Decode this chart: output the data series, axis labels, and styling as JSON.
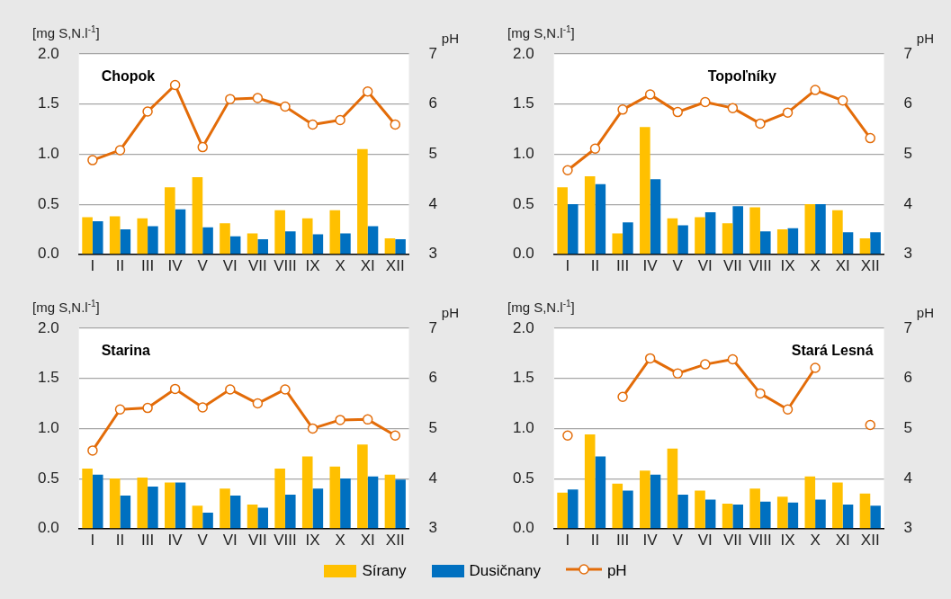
{
  "chart_data": [
    {
      "type": "bar",
      "title": "Chopok",
      "ylabel": "[mg S,N.l$^{-1}$]",
      "y2label": "pH",
      "categories": [
        "I",
        "II",
        "III",
        "IV",
        "V",
        "VI",
        "VII",
        "VIII",
        "IX",
        "X",
        "XI",
        "XII"
      ],
      "ylim": [
        0,
        2
      ],
      "yticks": [
        {
          "value": 0,
          "label": "0.0"
        },
        {
          "value": 0.5,
          "label": "0.5"
        },
        {
          "value": 1,
          "label": "1.0"
        },
        {
          "value": 1.5,
          "label": "1.5"
        },
        {
          "value": 2,
          "label": "2.0"
        }
      ],
      "y2lim": [
        3,
        7
      ],
      "y2ticks": [
        3,
        4,
        5,
        6,
        7
      ],
      "grid": "y",
      "legend": "bottom",
      "series": [
        {
          "name": "Sírany",
          "color": "#ffc000",
          "values": [
            0.37,
            0.38,
            0.36,
            0.67,
            0.77,
            0.31,
            0.21,
            0.44,
            0.36,
            0.44,
            1.05,
            0.16
          ]
        },
        {
          "name": "Dusičnany",
          "color": "#0070c0",
          "values": [
            0.33,
            0.25,
            0.28,
            0.45,
            0.27,
            0.18,
            0.15,
            0.23,
            0.2,
            0.21,
            0.28,
            0.15
          ]
        },
        {
          "name": "pH",
          "type": "line",
          "axis": "y2",
          "marker": "circle",
          "color": "#e36c09",
          "values": [
            4.88,
            5.08,
            5.85,
            6.38,
            5.14,
            6.1,
            6.12,
            5.95,
            5.59,
            5.68,
            6.25,
            5.59
          ]
        }
      ]
    },
    {
      "type": "bar",
      "title": "Topoľníky",
      "ylabel": "[mg S,N.l$^{-1}$]",
      "y2label": "pH",
      "categories": [
        "I",
        "II",
        "III",
        "IV",
        "V",
        "VI",
        "VII",
        "VIII",
        "IX",
        "X",
        "XI",
        "XII"
      ],
      "ylim": [
        0,
        2
      ],
      "yticks": [
        {
          "value": 0,
          "label": "0.0"
        },
        {
          "value": 0.5,
          "label": "0.5"
        },
        {
          "value": 1,
          "label": "1.0"
        },
        {
          "value": 1.5,
          "label": "1.5"
        },
        {
          "value": 2,
          "label": "2.0"
        }
      ],
      "y2lim": [
        3,
        7
      ],
      "y2ticks": [
        3,
        4,
        5,
        6,
        7
      ],
      "grid": "y",
      "series": [
        {
          "color": "#ffc000",
          "values": [
            0.67,
            0.78,
            0.21,
            1.27,
            0.36,
            0.37,
            0.31,
            0.47,
            0.25,
            0.5,
            0.44,
            0.16
          ]
        },
        {
          "color": "#0070c0",
          "values": [
            0.5,
            0.7,
            0.32,
            0.75,
            0.29,
            0.42,
            0.48,
            0.23,
            0.26,
            0.5,
            0.22,
            0.22
          ]
        },
        {
          "type": "line",
          "axis": "y2",
          "marker": "circle",
          "color": "#e36c09",
          "values": [
            4.68,
            5.11,
            5.89,
            6.19,
            5.84,
            6.04,
            5.92,
            5.61,
            5.83,
            6.28,
            6.07,
            5.32
          ]
        }
      ]
    },
    {
      "type": "bar",
      "title": "Starina",
      "ylabel": "[mg S,N.l$^{-1}$]",
      "y2label": "pH",
      "categories": [
        "I",
        "II",
        "III",
        "IV",
        "V",
        "VI",
        "VII",
        "VIII",
        "IX",
        "X",
        "XI",
        "XII"
      ],
      "ylim": [
        0,
        2
      ],
      "yticks": [
        {
          "value": 0,
          "label": "0.0"
        },
        {
          "value": 0.5,
          "label": "0.5"
        },
        {
          "value": 1,
          "label": "1.0"
        },
        {
          "value": 1.5,
          "label": "1.5"
        },
        {
          "value": 2,
          "label": "2.0"
        }
      ],
      "y2lim": [
        3,
        7
      ],
      "y2ticks": [
        3,
        4,
        5,
        6,
        7
      ],
      "grid": "y",
      "series": [
        {
          "color": "#ffc000",
          "values": [
            0.6,
            0.5,
            0.51,
            0.46,
            0.23,
            0.4,
            0.24,
            0.6,
            0.72,
            0.62,
            0.84,
            0.54
          ]
        },
        {
          "color": "#0070c0",
          "values": [
            0.54,
            0.33,
            0.42,
            0.46,
            0.16,
            0.33,
            0.21,
            0.34,
            0.4,
            0.5,
            0.52,
            0.49
          ]
        },
        {
          "type": "line",
          "axis": "y2",
          "marker": "circle",
          "color": "#e36c09",
          "values": [
            4.56,
            5.38,
            5.41,
            5.79,
            5.42,
            5.78,
            5.5,
            5.78,
            5.0,
            5.17,
            5.18,
            4.86
          ]
        }
      ]
    },
    {
      "type": "bar",
      "title": "Stará Lesná",
      "ylabel": "[mg S,N.l$^{-1}$]",
      "y2label": "pH",
      "categories": [
        "I",
        "II",
        "III",
        "IV",
        "V",
        "VI",
        "VII",
        "VIII",
        "IX",
        "X",
        "XI",
        "XII"
      ],
      "ylim": [
        0,
        2
      ],
      "yticks": [
        {
          "value": 0,
          "label": "0.0"
        },
        {
          "value": 0.5,
          "label": "0.5"
        },
        {
          "value": 1,
          "label": "1.0"
        },
        {
          "value": 1.5,
          "label": "1.5"
        },
        {
          "value": 2,
          "label": "2.0"
        }
      ],
      "y2lim": [
        3,
        7
      ],
      "y2ticks": [
        3,
        4,
        5,
        6,
        7
      ],
      "grid": "y",
      "series": [
        {
          "color": "#ffc000",
          "values": [
            0.36,
            0.94,
            0.45,
            0.58,
            0.8,
            0.38,
            0.25,
            0.4,
            0.32,
            0.52,
            0.46,
            0.35
          ]
        },
        {
          "color": "#0070c0",
          "values": [
            0.39,
            0.72,
            0.38,
            0.54,
            0.34,
            0.29,
            0.24,
            0.27,
            0.26,
            0.29,
            0.24,
            0.23
          ]
        },
        {
          "type": "line",
          "axis": "y2",
          "marker": "circle",
          "color": "#e36c09",
          "values": [
            4.86,
            null,
            5.63,
            6.4,
            6.1,
            6.28,
            6.38,
            5.7,
            5.38,
            6.21,
            null,
            5.07
          ]
        }
      ]
    }
  ]
}
